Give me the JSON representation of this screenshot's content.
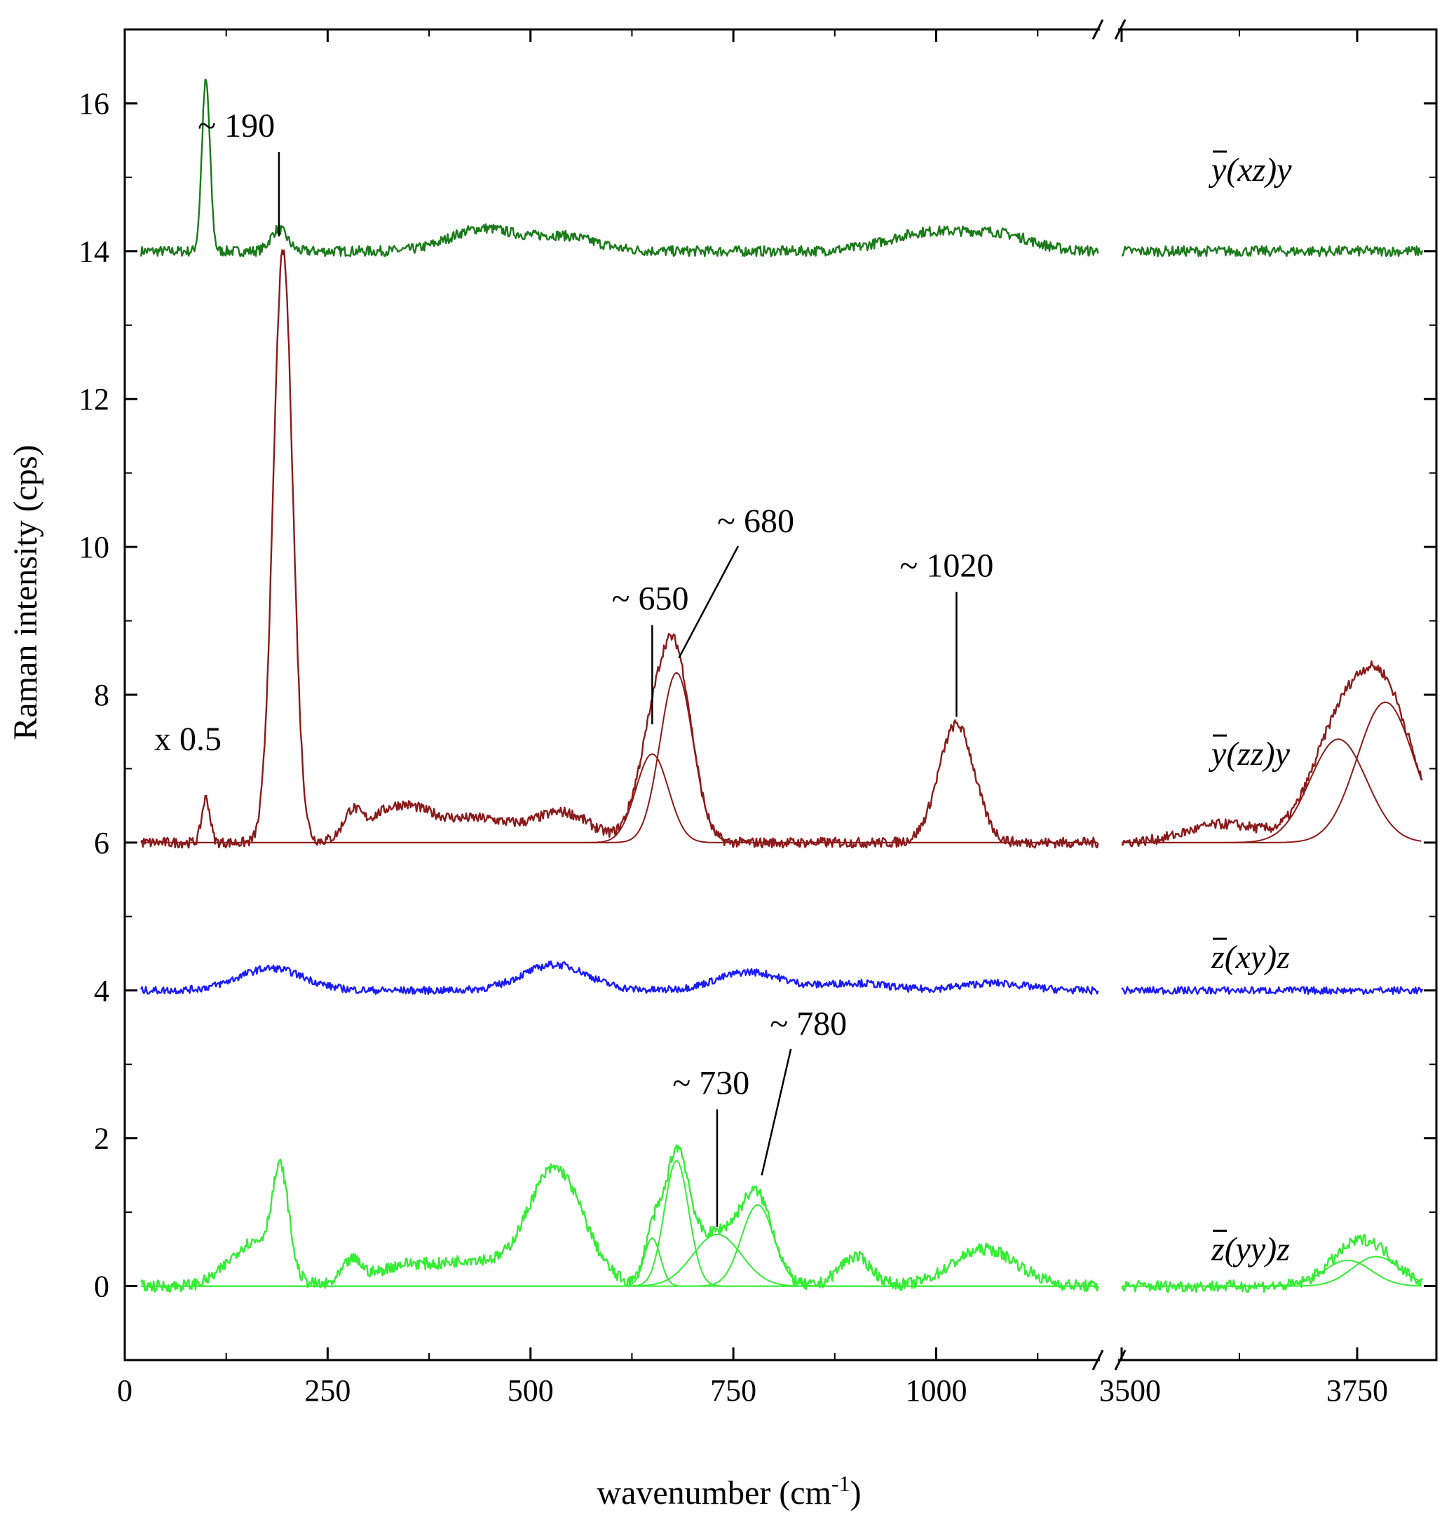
{
  "chart_data": {
    "type": "line",
    "xlabel": "wavenumber (cm",
    "xlabel_sup": "-1",
    "xlabel_suffix": ")",
    "ylabel": "Raman intensity (cps)",
    "ylim": [
      -1,
      17
    ],
    "x_segments": [
      {
        "range": [
          0,
          1200
        ],
        "ticks": [
          0,
          250,
          500,
          750,
          1000
        ]
      },
      {
        "range": [
          3500,
          3580
        ],
        "ticks": [
          3500
        ]
      },
      {
        "range": [
          3580,
          3820
        ],
        "ticks": [
          3750
        ]
      }
    ],
    "axis_break": true,
    "y_ticks": [
      0,
      2,
      4,
      6,
      8,
      10,
      12,
      14,
      16
    ],
    "series": [
      {
        "geometry_bar": "y",
        "geometry_rest": "(xz)y",
        "color": "#1a7a1a",
        "offset": 14,
        "peaks": [
          {
            "x": 100,
            "h": 2.3,
            "w": 5
          },
          {
            "x": 190,
            "h": 0.3,
            "w": 10
          },
          {
            "x": 440,
            "h": 0.3,
            "w": 40
          },
          {
            "x": 540,
            "h": 0.2,
            "w": 40
          },
          {
            "x": 990,
            "h": 0.25,
            "w": 50
          },
          {
            "x": 1080,
            "h": 0.2,
            "w": 40
          }
        ],
        "noise": 0.07
      },
      {
        "geometry_bar": "y",
        "geometry_rest": "(zz)y",
        "color": "#8b1a1a",
        "offset": 6,
        "scale_label": "x 0.5",
        "peaks": [
          {
            "x": 100,
            "h": 0.6,
            "w": 5
          },
          {
            "x": 195,
            "h": 8.0,
            "w": 12
          },
          {
            "x": 280,
            "h": 0.3,
            "w": 10
          },
          {
            "x": 340,
            "h": 0.5,
            "w": 40
          },
          {
            "x": 440,
            "h": 0.3,
            "w": 40
          },
          {
            "x": 540,
            "h": 0.4,
            "w": 35
          },
          {
            "x": 650,
            "h": 1.2,
            "w": 20
          },
          {
            "x": 680,
            "h": 2.3,
            "w": 20
          },
          {
            "x": 1025,
            "h": 1.6,
            "w": 22
          },
          {
            "x": 3610,
            "h": 0.25,
            "w": 40
          },
          {
            "x": 3730,
            "h": 1.4,
            "w": 30
          },
          {
            "x": 3780,
            "h": 1.9,
            "w": 30
          }
        ],
        "fits": [
          {
            "x": 650,
            "h": 1.2,
            "w": 20
          },
          {
            "x": 680,
            "h": 2.3,
            "w": 20
          },
          {
            "x": 3730,
            "h": 1.4,
            "w": 30
          },
          {
            "x": 3780,
            "h": 1.9,
            "w": 30
          }
        ],
        "noise": 0.07
      },
      {
        "geometry_bar": "z",
        "geometry_rest": "(xy)z",
        "color": "#1a1aff",
        "offset": 4,
        "peaks": [
          {
            "x": 180,
            "h": 0.3,
            "w": 40
          },
          {
            "x": 530,
            "h": 0.35,
            "w": 40
          },
          {
            "x": 770,
            "h": 0.25,
            "w": 40
          },
          {
            "x": 900,
            "h": 0.1,
            "w": 40
          },
          {
            "x": 1070,
            "h": 0.1,
            "w": 40
          }
        ],
        "noise": 0.05
      },
      {
        "geometry_bar": "z",
        "geometry_rest": "(yy)z",
        "color": "#33ee33",
        "offset": 0,
        "peaks": [
          {
            "x": 160,
            "h": 0.6,
            "w": 30
          },
          {
            "x": 192,
            "h": 1.3,
            "w": 10
          },
          {
            "x": 280,
            "h": 0.3,
            "w": 12
          },
          {
            "x": 350,
            "h": 0.3,
            "w": 40
          },
          {
            "x": 430,
            "h": 0.3,
            "w": 30
          },
          {
            "x": 530,
            "h": 1.6,
            "w": 35
          },
          {
            "x": 650,
            "h": 0.65,
            "w": 10
          },
          {
            "x": 680,
            "h": 1.7,
            "w": 15
          },
          {
            "x": 730,
            "h": 0.7,
            "w": 30
          },
          {
            "x": 780,
            "h": 1.1,
            "w": 20
          },
          {
            "x": 900,
            "h": 0.4,
            "w": 20
          },
          {
            "x": 1060,
            "h": 0.5,
            "w": 40
          },
          {
            "x": 3740,
            "h": 0.35,
            "w": 25
          },
          {
            "x": 3770,
            "h": 0.4,
            "w": 25
          }
        ],
        "fits": [
          {
            "x": 650,
            "h": 0.65,
            "w": 10
          },
          {
            "x": 680,
            "h": 1.7,
            "w": 15
          },
          {
            "x": 730,
            "h": 0.7,
            "w": 30
          },
          {
            "x": 780,
            "h": 1.1,
            "w": 20
          },
          {
            "x": 3740,
            "h": 0.35,
            "w": 25
          },
          {
            "x": 3770,
            "h": 0.4,
            "w": 25
          }
        ],
        "noise": 0.08
      }
    ],
    "annotations": [
      {
        "text": "~ 190",
        "x": 190,
        "y": 14.2,
        "text_x": 90,
        "text_y": 15.55
      },
      {
        "text": "~ 650",
        "x": 650,
        "y": 7.6,
        "text_x": 600,
        "text_y": 9.15
      },
      {
        "text": "~ 680",
        "x": 683,
        "y": 8.5,
        "text_x": 730,
        "text_y": 10.2
      },
      {
        "text": "~ 1020",
        "x": 1025,
        "y": 7.7,
        "text_x": 955,
        "text_y": 9.6
      },
      {
        "text": "~ 730",
        "x": 730,
        "y": 0.8,
        "text_x": 675,
        "text_y": 2.6
      },
      {
        "text": "~ 780",
        "x": 785,
        "y": 1.5,
        "text_x": 795,
        "text_y": 3.4
      }
    ]
  }
}
